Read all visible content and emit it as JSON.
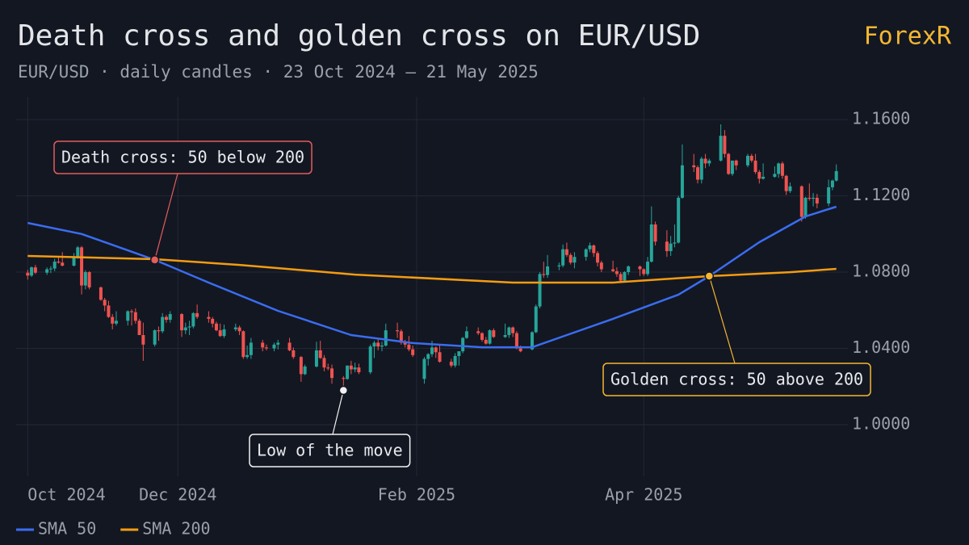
{
  "header": {
    "brand": "ForexR"
  },
  "chart_data": {
    "type": "candlestick",
    "title": "Death cross and golden cross on EUR/USD",
    "subtitle": "EUR/USD · daily candles · 23 Oct 2024 – 21 May 2025",
    "up_color": "#26a69a",
    "down_color": "#ef5350",
    "grid": true,
    "xlim": [
      "2024-10-20",
      "2025-05-24"
    ],
    "xticks": [
      {
        "value": "2024-10-23",
        "label": "Oct 2024"
      },
      {
        "value": "2024-12-01",
        "label": "Dec 2024"
      },
      {
        "value": "2025-02-01",
        "label": "Feb 2025"
      },
      {
        "value": "2025-04-01",
        "label": "Apr 2025"
      }
    ],
    "ylim": [
      0.9729,
      1.1719
    ],
    "yticks": [
      {
        "value": 1.16,
        "label": "1.1600"
      },
      {
        "value": 1.12,
        "label": "1.1200"
      },
      {
        "value": 1.08,
        "label": "1.0800"
      },
      {
        "value": 1.04,
        "label": "1.0400"
      },
      {
        "value": 1.0,
        "label": "1.0000"
      }
    ],
    "x": [
      "2024-10-23",
      "2024-10-24",
      "2024-10-25",
      "2024-10-28",
      "2024-10-29",
      "2024-10-30",
      "2024-10-31",
      "2024-11-01",
      "2024-11-04",
      "2024-11-05",
      "2024-11-06",
      "2024-11-07",
      "2024-11-08",
      "2024-11-11",
      "2024-11-12",
      "2024-11-13",
      "2024-11-14",
      "2024-11-15",
      "2024-11-18",
      "2024-11-19",
      "2024-11-20",
      "2024-11-21",
      "2024-11-22",
      "2024-11-25",
      "2024-11-26",
      "2024-11-27",
      "2024-11-28",
      "2024-11-29",
      "2024-12-02",
      "2024-12-03",
      "2024-12-04",
      "2024-12-05",
      "2024-12-06",
      "2024-12-09",
      "2024-12-10",
      "2024-12-11",
      "2024-12-12",
      "2024-12-13",
      "2024-12-16",
      "2024-12-17",
      "2024-12-18",
      "2024-12-19",
      "2024-12-20",
      "2024-12-23",
      "2024-12-24",
      "2024-12-26",
      "2024-12-27",
      "2024-12-30",
      "2024-12-31",
      "2025-01-02",
      "2025-01-03",
      "2025-01-06",
      "2025-01-07",
      "2025-01-08",
      "2025-01-09",
      "2025-01-10",
      "2025-01-13",
      "2025-01-14",
      "2025-01-15",
      "2025-01-16",
      "2025-01-17",
      "2025-01-20",
      "2025-01-21",
      "2025-01-22",
      "2025-01-23",
      "2025-01-24",
      "2025-01-27",
      "2025-01-28",
      "2025-01-29",
      "2025-01-30",
      "2025-01-31",
      "2025-02-03",
      "2025-02-04",
      "2025-02-05",
      "2025-02-06",
      "2025-02-07",
      "2025-02-10",
      "2025-02-11",
      "2025-02-12",
      "2025-02-13",
      "2025-02-14",
      "2025-02-17",
      "2025-02-18",
      "2025-02-19",
      "2025-02-20",
      "2025-02-21",
      "2025-02-24",
      "2025-02-25",
      "2025-02-26",
      "2025-02-27",
      "2025-02-28",
      "2025-03-03",
      "2025-03-04",
      "2025-03-05",
      "2025-03-06",
      "2025-03-07",
      "2025-03-10",
      "2025-03-11",
      "2025-03-12",
      "2025-03-13",
      "2025-03-14",
      "2025-03-17",
      "2025-03-18",
      "2025-03-19",
      "2025-03-20",
      "2025-03-21",
      "2025-03-24",
      "2025-03-25",
      "2025-03-26",
      "2025-03-27",
      "2025-03-28",
      "2025-03-31",
      "2025-04-01",
      "2025-04-02",
      "2025-04-03",
      "2025-04-04",
      "2025-04-07",
      "2025-04-08",
      "2025-04-09",
      "2025-04-10",
      "2025-04-11",
      "2025-04-14",
      "2025-04-15",
      "2025-04-16",
      "2025-04-17",
      "2025-04-18",
      "2025-04-21",
      "2025-04-22",
      "2025-04-23",
      "2025-04-24",
      "2025-04-25",
      "2025-04-28",
      "2025-04-29",
      "2025-04-30",
      "2025-05-01",
      "2025-05-02",
      "2025-05-05",
      "2025-05-06",
      "2025-05-07",
      "2025-05-08",
      "2025-05-09",
      "2025-05-12",
      "2025-05-13",
      "2025-05-14",
      "2025-05-15",
      "2025-05-16",
      "2025-05-19",
      "2025-05-20",
      "2025-05-21"
    ],
    "open": [
      1.0797,
      1.0782,
      1.0825,
      1.0797,
      1.0815,
      1.0819,
      1.0855,
      1.085,
      1.0834,
      1.088,
      1.093,
      1.073,
      1.08,
      1.072,
      1.0655,
      1.0625,
      1.0565,
      1.053,
      1.0545,
      1.0595,
      1.059,
      1.0545,
      1.047,
      1.042,
      1.0495,
      1.049,
      1.0565,
      1.055,
      1.058,
      1.0495,
      1.051,
      1.0515,
      1.0585,
      1.0565,
      1.0555,
      1.053,
      1.0495,
      1.0465,
      1.05,
      1.051,
      1.049,
      1.0355,
      1.0365,
      1.043,
      1.0405,
      1.04,
      1.042,
      1.043,
      1.039,
      1.0355,
      1.0265,
      1.0305,
      1.039,
      1.035,
      1.03,
      1.0295,
      1.0245,
      1.024,
      1.031,
      1.029,
      1.03,
      1.0275,
      1.041,
      1.043,
      1.041,
      1.0415,
      1.0495,
      1.049,
      1.043,
      1.042,
      1.0395,
      1.024,
      1.0345,
      1.037,
      1.0405,
      1.038,
      1.033,
      1.031,
      1.036,
      1.0385,
      1.0455,
      1.049,
      1.048,
      1.0445,
      1.0425,
      1.0495,
      1.046,
      1.047,
      1.051,
      1.048,
      1.04,
      1.0395,
      1.0485,
      1.062,
      1.079,
      1.0785,
      1.083,
      1.0835,
      1.092,
      1.089,
      1.085,
      1.088,
      1.092,
      1.094,
      1.09,
      1.085,
      1.0815,
      1.0805,
      1.079,
      1.0755,
      1.08,
      1.083,
      1.0815,
      1.079,
      1.0855,
      1.105,
      1.096,
      1.091,
      1.095,
      1.0955,
      1.119,
      1.136,
      1.135,
      1.1285,
      1.1395,
      1.137,
      1.1385,
      1.1515,
      1.142,
      1.1315,
      1.1385,
      1.136,
      1.141,
      1.1385,
      1.1325,
      1.129,
      1.13,
      1.1315,
      1.137,
      1.1305,
      1.1225,
      1.125,
      1.109,
      1.119,
      1.1185,
      1.119,
      1.116,
      1.1245,
      1.128
    ],
    "high": [
      1.0812,
      1.083,
      1.0838,
      1.0825,
      1.0832,
      1.087,
      1.0885,
      1.0905,
      1.09,
      1.0937,
      1.0937,
      1.081,
      1.0805,
      1.0725,
      1.0665,
      1.065,
      1.058,
      1.0595,
      1.06,
      1.0605,
      1.061,
      1.0555,
      1.0535,
      1.05,
      1.0515,
      1.0585,
      1.0575,
      1.0595,
      1.0585,
      1.0535,
      1.0545,
      1.059,
      1.063,
      1.0595,
      1.0565,
      1.054,
      1.053,
      1.0525,
      1.053,
      1.052,
      1.0495,
      1.0415,
      1.0455,
      1.0445,
      1.042,
      1.043,
      1.0445,
      1.0455,
      1.0405,
      1.036,
      1.0315,
      1.0435,
      1.044,
      1.0365,
      1.032,
      1.0315,
      1.0255,
      1.031,
      1.0335,
      1.0325,
      1.032,
      1.042,
      1.044,
      1.0455,
      1.0435,
      1.053,
      1.0535,
      1.05,
      1.0445,
      1.0465,
      1.0415,
      1.0355,
      1.0375,
      1.044,
      1.041,
      1.0415,
      1.0345,
      1.0375,
      1.0385,
      1.046,
      1.0515,
      1.051,
      1.0485,
      1.046,
      1.05,
      1.0505,
      1.053,
      1.0515,
      1.0515,
      1.049,
      1.0415,
      1.049,
      1.063,
      1.08,
      1.0855,
      1.089,
      1.085,
      1.0945,
      1.0955,
      1.09,
      1.0905,
      1.0925,
      1.0955,
      1.0945,
      1.091,
      1.086,
      1.086,
      1.0825,
      1.08,
      1.0805,
      1.0835,
      1.0835,
      1.082,
      1.088,
      1.1145,
      1.1065,
      1.102,
      1.099,
      1.105,
      1.12,
      1.147,
      1.142,
      1.136,
      1.1405,
      1.142,
      1.1395,
      1.1575,
      1.1545,
      1.1425,
      1.1385,
      1.139,
      1.142,
      1.142,
      1.142,
      1.1335,
      1.137,
      1.1355,
      1.1375,
      1.138,
      1.131,
      1.127,
      1.1255,
      1.1195,
      1.1265,
      1.1215,
      1.121,
      1.1285,
      1.1285,
      1.1365
    ],
    "low": [
      1.0761,
      1.0775,
      1.079,
      1.0786,
      1.0795,
      1.0805,
      1.0845,
      1.083,
      1.083,
      1.087,
      1.0683,
      1.071,
      1.071,
      1.065,
      1.0595,
      1.056,
      1.05,
      1.052,
      1.052,
      1.052,
      1.053,
      1.047,
      1.0335,
      1.041,
      1.044,
      1.048,
      1.0535,
      1.0535,
      1.046,
      1.0475,
      1.047,
      1.0505,
      1.0555,
      1.0535,
      1.051,
      1.049,
      1.046,
      1.0455,
      1.049,
      1.047,
      1.0345,
      1.0345,
      1.0345,
      1.0385,
      1.039,
      1.0385,
      1.0395,
      1.0385,
      1.0345,
      1.0225,
      1.026,
      1.03,
      1.0345,
      1.028,
      1.0285,
      1.0215,
      1.018,
      1.0235,
      1.0265,
      1.0275,
      1.0265,
      1.0265,
      1.035,
      1.039,
      1.0385,
      1.041,
      1.0455,
      1.042,
      1.0405,
      1.0385,
      1.0355,
      1.0215,
      1.031,
      1.0355,
      1.035,
      1.0325,
      1.03,
      1.03,
      1.031,
      1.0375,
      1.045,
      1.047,
      1.0435,
      1.042,
      1.042,
      1.0455,
      1.0455,
      1.0455,
      1.046,
      1.0395,
      1.038,
      1.039,
      1.048,
      1.061,
      1.077,
      1.077,
      1.081,
      1.0825,
      1.088,
      1.084,
      1.082,
      1.086,
      1.0905,
      1.088,
      1.083,
      1.08,
      1.08,
      1.0775,
      1.075,
      1.0745,
      1.0785,
      1.078,
      1.078,
      1.078,
      1.085,
      1.094,
      1.088,
      1.0885,
      1.093,
      1.095,
      1.1185,
      1.1325,
      1.1265,
      1.1265,
      1.1345,
      1.1355,
      1.138,
      1.14,
      1.131,
      1.1305,
      1.1335,
      1.135,
      1.1375,
      1.1315,
      1.1265,
      1.1285,
      1.1295,
      1.1295,
      1.129,
      1.1205,
      1.1215,
      1.1065,
      1.108,
      1.1175,
      1.1145,
      1.1135,
      1.1145,
      1.123,
      1.1275
    ],
    "close": [
      1.0782,
      1.0825,
      1.0797,
      1.0815,
      1.0819,
      1.0855,
      1.085,
      1.0834,
      1.088,
      1.093,
      1.073,
      1.08,
      1.072,
      1.0655,
      1.0625,
      1.0565,
      1.053,
      1.0545,
      1.0595,
      1.059,
      1.0545,
      1.047,
      1.042,
      1.0495,
      1.049,
      1.0565,
      1.055,
      1.058,
      1.0495,
      1.051,
      1.0515,
      1.0585,
      1.0565,
      1.0555,
      1.053,
      1.0495,
      1.0465,
      1.05,
      1.051,
      1.049,
      1.0355,
      1.0365,
      1.043,
      1.0405,
      1.04,
      1.042,
      1.043,
      1.039,
      1.0355,
      1.0265,
      1.0305,
      1.039,
      1.035,
      1.03,
      1.0295,
      1.0245,
      1.024,
      1.031,
      1.029,
      1.03,
      1.0275,
      1.041,
      1.043,
      1.041,
      1.0415,
      1.0495,
      1.049,
      1.043,
      1.042,
      1.0395,
      1.0365,
      1.0345,
      1.037,
      1.0405,
      1.038,
      1.033,
      1.031,
      1.036,
      1.0385,
      1.0455,
      1.049,
      1.048,
      1.0445,
      1.0425,
      1.0495,
      1.046,
      1.047,
      1.051,
      1.048,
      1.04,
      1.0385,
      1.0485,
      1.062,
      1.079,
      1.0785,
      1.083,
      1.0835,
      1.092,
      1.089,
      1.085,
      1.088,
      1.092,
      1.094,
      1.09,
      1.085,
      1.0815,
      1.0805,
      1.079,
      1.0755,
      1.08,
      1.083,
      1.0815,
      1.079,
      1.0855,
      1.105,
      1.096,
      1.091,
      1.095,
      1.0955,
      1.119,
      1.136,
      1.135,
      1.1285,
      1.1395,
      1.137,
      1.1385,
      1.1515,
      1.142,
      1.1315,
      1.1385,
      1.136,
      1.141,
      1.1385,
      1.1325,
      1.129,
      1.13,
      1.1315,
      1.137,
      1.1305,
      1.1225,
      1.125,
      1.109,
      1.119,
      1.1185,
      1.119,
      1.116,
      1.1245,
      1.128,
      1.133
    ],
    "lines": [
      {
        "name": "SMA 50",
        "color": "#3a6df0",
        "x": [
          "2024-10-23",
          "2024-11-06",
          "2024-11-25",
          "2024-12-09",
          "2024-12-27",
          "2025-01-15",
          "2025-01-31",
          "2025-02-18",
          "2025-03-03",
          "2025-03-12",
          "2025-03-24",
          "2025-04-10",
          "2025-04-18",
          "2025-05-01",
          "2025-05-13",
          "2025-05-21"
        ],
        "values": [
          1.1058,
          1.1,
          1.0864,
          1.0745,
          1.0597,
          1.047,
          1.0428,
          1.0406,
          1.0406,
          1.047,
          1.0555,
          1.0682,
          1.0779,
          1.0957,
          1.1092,
          1.1143
        ]
      },
      {
        "name": "SMA 200",
        "color": "#f39c12",
        "x": [
          "2024-10-23",
          "2024-11-25",
          "2024-12-17",
          "2025-01-16",
          "2025-02-26",
          "2025-03-24",
          "2025-04-18",
          "2025-05-09",
          "2025-05-21"
        ],
        "values": [
          1.0885,
          1.0868,
          1.0838,
          1.0787,
          1.0745,
          1.0745,
          1.0779,
          1.08,
          1.0817
        ]
      }
    ],
    "annotations": [
      {
        "text": "Death cross: 50 below 200",
        "x": "2024-11-25",
        "y": 1.0864,
        "color": "#e35d5b"
      },
      {
        "text": "Golden cross: 50 above 200",
        "x": "2025-04-18",
        "y": 1.0779,
        "color": "#f5b731"
      },
      {
        "text": "Low of the move",
        "x": "2025-01-13",
        "y": 1.018,
        "color": "#f2f2f2"
      }
    ]
  }
}
